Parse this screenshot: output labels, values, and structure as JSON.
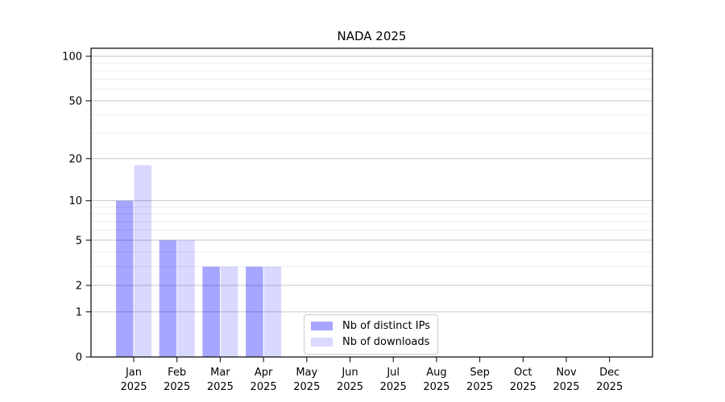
{
  "chart_data": {
    "type": "bar",
    "title": "NADA 2025",
    "categories": [
      "Jan",
      "Feb",
      "Mar",
      "Apr",
      "May",
      "Jun",
      "Jul",
      "Aug",
      "Sep",
      "Oct",
      "Nov",
      "Dec"
    ],
    "x_year_label": "2025",
    "series": [
      {
        "name": "Nb of distinct IPs",
        "color_hex": "#a6a6ff",
        "color_rgba": "rgba(0,0,255,0.35)",
        "values": [
          10,
          5,
          3,
          3,
          0,
          0,
          0,
          0,
          0,
          0,
          0,
          0
        ]
      },
      {
        "name": "Nb of downloads",
        "color_hex": "#d9d9ff",
        "color_rgba": "rgba(0,0,255,0.15)",
        "values": [
          18,
          5,
          3,
          3,
          0,
          0,
          0,
          0,
          0,
          0,
          0,
          0
        ]
      }
    ],
    "xlabel": "",
    "ylabel": "",
    "yscale": "log1p",
    "ylim": [
      0,
      113
    ],
    "y_major_ticks": [
      0,
      1,
      2,
      5,
      10,
      20,
      50,
      100
    ],
    "y_minor_ticks": [
      3,
      4,
      6,
      7,
      8,
      9,
      30,
      40,
      60,
      70,
      80,
      90
    ],
    "grid": "major+minor horizontal",
    "legend_position": "lower-center-inside"
  },
  "colors": {
    "background": "#ffffff",
    "bar_distinct_ips": "#a6a6ff",
    "bar_downloads": "#d9d9ff",
    "grid_major": "#c6c6c6",
    "grid_minor": "#ebebeb",
    "axis": "#000000",
    "text": "#000000",
    "legend_border": "#cccccc"
  }
}
